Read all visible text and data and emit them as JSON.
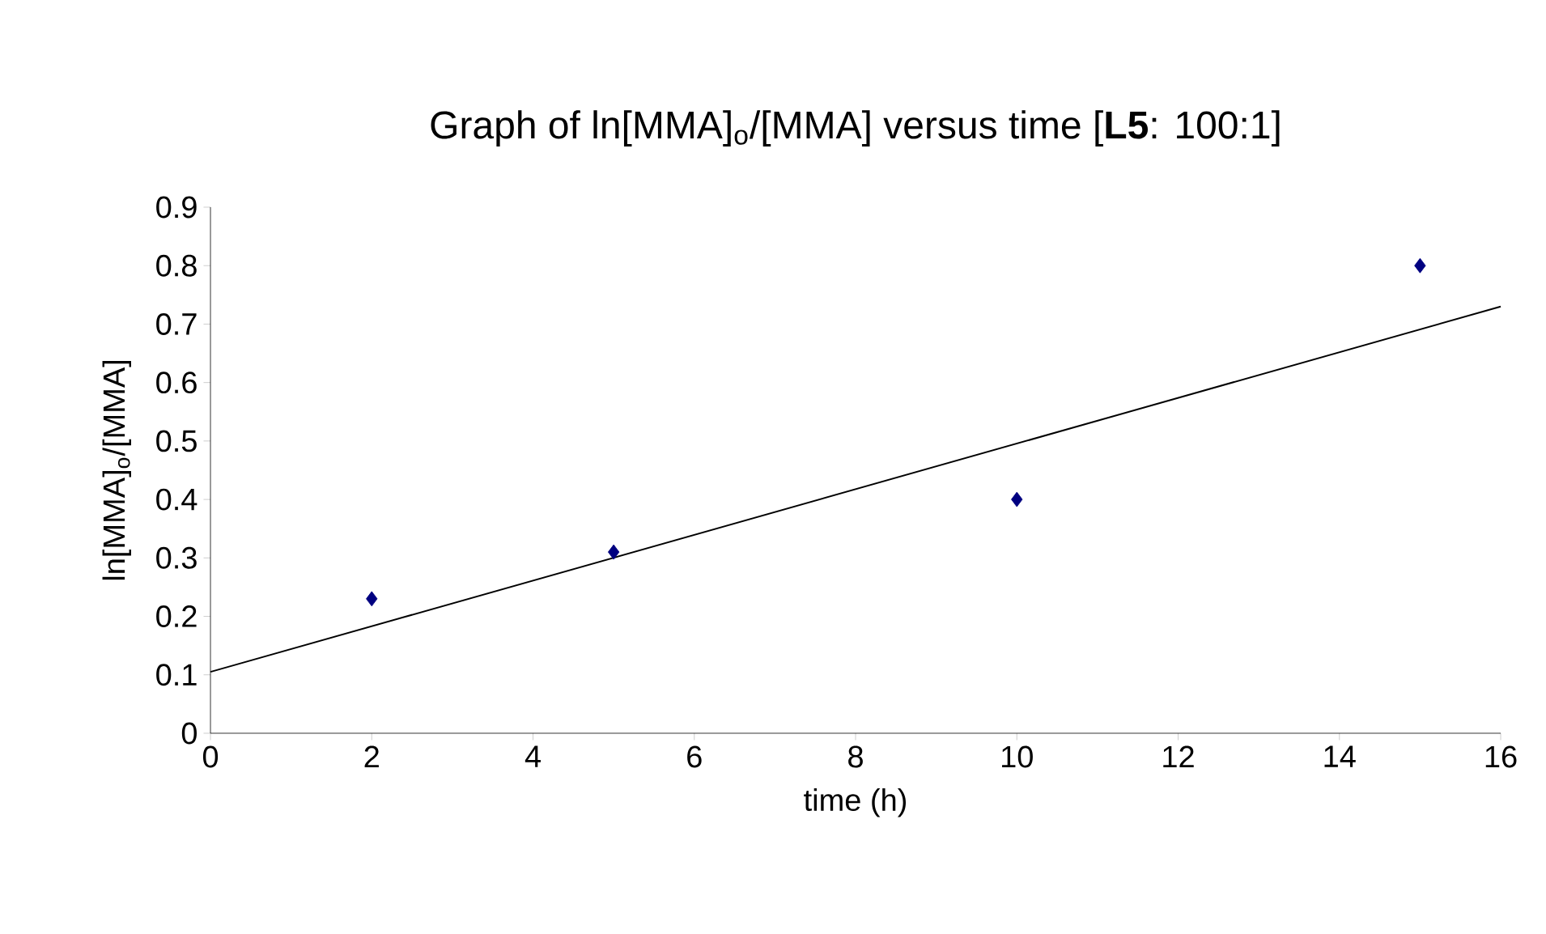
{
  "chart_data": {
    "type": "scatter",
    "title": "Graph of ln[MMA]$_{o}$/[MMA] versus time [**L5**: 100:1]",
    "xlabel": "time (h)",
    "ylabel": "ln[MMA]$_{o}$/[MMA]",
    "xlim": [
      0,
      16
    ],
    "xticks": [
      0,
      2,
      4,
      6,
      8,
      10,
      12,
      14,
      16
    ],
    "ylim": [
      0,
      0.9
    ],
    "yticks": [
      0,
      0.1,
      0.2,
      0.3,
      0.4,
      0.5,
      0.6,
      0.7,
      0.8,
      0.9
    ],
    "grid": false,
    "series": [
      {
        "color": "#000080",
        "marker": "diamond",
        "x": [
          2,
          5,
          10,
          15
        ],
        "values": [
          0.23,
          0.31,
          0.4,
          0.8
        ]
      },
      {
        "type": "line",
        "color": "#000000",
        "marker": "none",
        "line_style": "solid",
        "x": [
          0,
          16
        ],
        "values": [
          0.105,
          0.73
        ]
      }
    ]
  }
}
